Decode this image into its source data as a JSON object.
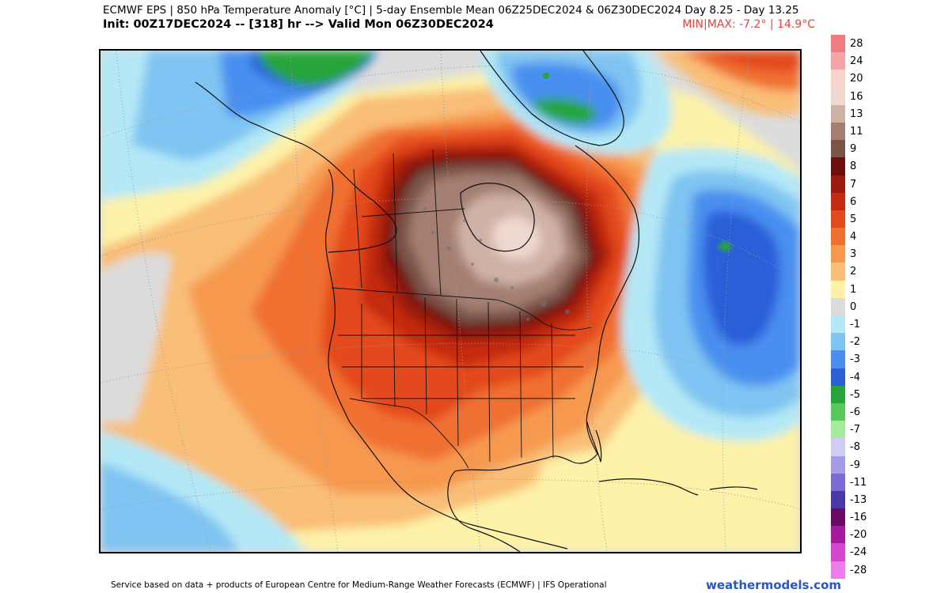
{
  "header": {
    "title_line": "ECMWF EPS | 850 hPa Temperature Anomaly [°C] | 5-day Ensemble Mean 06Z25DEC2024 & 06Z30DEC2024   Day 8.25 - Day 13.25",
    "init_line": "Init: 00Z17DEC2024 -- [318] hr --> Valid Mon 06Z30DEC2024",
    "minmax": "MIN|MAX: -7.2° | 14.9°C"
  },
  "legend": {
    "entries": [
      {
        "label": "28",
        "color": "#f07c80"
      },
      {
        "label": "24",
        "color": "#f4a3a6"
      },
      {
        "label": "20",
        "color": "#f8d2cd"
      },
      {
        "label": "16",
        "color": "#efd8cf"
      },
      {
        "label": "13",
        "color": "#cfb2a6"
      },
      {
        "label": "11",
        "color": "#a47f71"
      },
      {
        "label": "9",
        "color": "#7a5448"
      },
      {
        "label": "8",
        "color": "#6a0f0b"
      },
      {
        "label": "7",
        "color": "#9e1a0f"
      },
      {
        "label": "6",
        "color": "#c42b10"
      },
      {
        "label": "5",
        "color": "#e34a1c"
      },
      {
        "label": "4",
        "color": "#f07030"
      },
      {
        "label": "3",
        "color": "#f6994f"
      },
      {
        "label": "2",
        "color": "#f9be77"
      },
      {
        "label": "1",
        "color": "#fdf2a8"
      },
      {
        "label": "0",
        "color": "#dcdcdc"
      },
      {
        "label": "-1",
        "color": "#b4e8f6"
      },
      {
        "label": "-2",
        "color": "#7fc4f2"
      },
      {
        "label": "-3",
        "color": "#4a8ff0"
      },
      {
        "label": "-4",
        "color": "#2c5fd8"
      },
      {
        "label": "-5",
        "color": "#25a53a"
      },
      {
        "label": "-6",
        "color": "#58c85a"
      },
      {
        "label": "-7",
        "color": "#a4ec9c"
      },
      {
        "label": "-8",
        "color": "#d0cdf4"
      },
      {
        "label": "-9",
        "color": "#a49ce6"
      },
      {
        "label": "-11",
        "color": "#7a6cd2"
      },
      {
        "label": "-13",
        "color": "#4a37a8"
      },
      {
        "label": "-16",
        "color": "#6a0a64"
      },
      {
        "label": "-20",
        "color": "#a41a9a"
      },
      {
        "label": "-24",
        "color": "#d646d0"
      },
      {
        "label": "-28",
        "color": "#f07cea"
      }
    ]
  },
  "footer": {
    "credit": "Service based on data + products of European Centre for Medium-Range Weather Forecasts (ECMWF) | IFS Operational",
    "site": "weathermodels.com"
  }
}
